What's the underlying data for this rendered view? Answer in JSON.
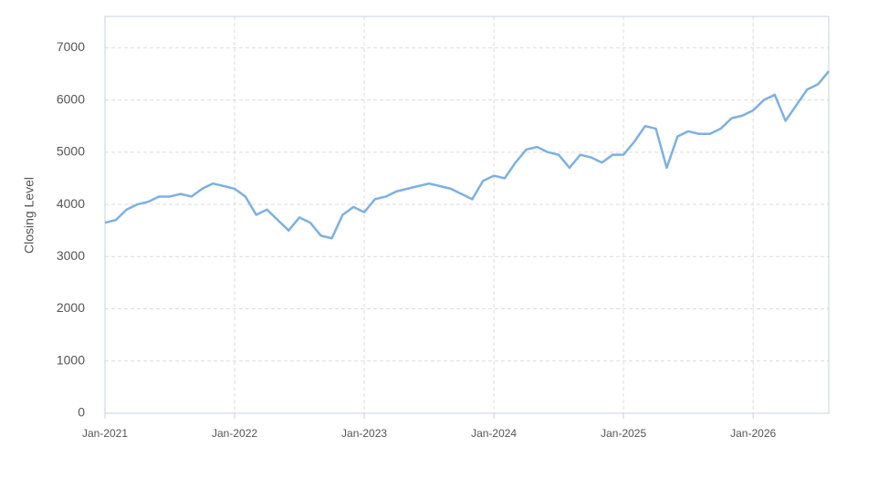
{
  "chart_data": {
    "type": "line",
    "y_label": "Closing Level",
    "x": [
      "2021-01",
      "2021-02",
      "2021-03",
      "2021-04",
      "2021-05",
      "2021-06",
      "2021-07",
      "2021-08",
      "2021-09",
      "2021-10",
      "2021-11",
      "2021-12",
      "2022-01",
      "2022-02",
      "2022-03",
      "2022-04",
      "2022-05",
      "2022-06",
      "2022-07",
      "2022-08",
      "2022-09",
      "2022-10",
      "2022-11",
      "2022-12",
      "2023-01",
      "2023-02",
      "2023-03",
      "2023-04",
      "2023-05",
      "2023-06",
      "2023-07",
      "2023-08",
      "2023-09",
      "2023-10",
      "2023-11",
      "2023-12",
      "2024-01",
      "2024-02",
      "2024-03",
      "2024-04",
      "2024-05",
      "2024-06",
      "2024-07",
      "2024-08",
      "2024-09",
      "2024-10",
      "2024-11",
      "2024-12",
      "2025-01",
      "2025-02",
      "2025-03",
      "2025-04",
      "2025-05",
      "2025-06",
      "2025-07",
      "2025-08",
      "2025-09",
      "2025-10",
      "2025-11",
      "2025-12",
      "2026-01",
      "2026-02",
      "2026-03",
      "2026-04",
      "2026-05",
      "2026-06",
      "2026-07",
      "2026-08"
    ],
    "series": [
      {
        "name": "Closing Level",
        "color": "#7cb0e4",
        "values": [
          3650,
          3700,
          3900,
          4000,
          4050,
          4150,
          4150,
          4200,
          4150,
          4300,
          4400,
          4350,
          4300,
          4150,
          3800,
          3900,
          3700,
          3500,
          3750,
          3650,
          3400,
          3350,
          3800,
          3950,
          3850,
          4100,
          4150,
          4250,
          4300,
          4350,
          4400,
          4350,
          4300,
          4200,
          4100,
          4450,
          4550,
          4500,
          4800,
          5050,
          5100,
          5000,
          4950,
          4700,
          4950,
          4900,
          4800,
          4950,
          4950,
          5200,
          5500,
          5450,
          4700,
          5300,
          5400,
          5350,
          5350,
          5450,
          5650,
          5700,
          5800,
          6000,
          6100,
          5600,
          5900,
          6200,
          6300,
          6550
        ]
      }
    ],
    "xlim": [
      "2021-01",
      "2026-08"
    ],
    "xticks": [
      {
        "value": "2021-01",
        "label": "Jan-2021"
      },
      {
        "value": "2022-01",
        "label": "Jan-2022"
      },
      {
        "value": "2023-01",
        "label": "Jan-2023"
      },
      {
        "value": "2024-01",
        "label": "Jan-2024"
      },
      {
        "value": "2025-01",
        "label": "Jan-2025"
      },
      {
        "value": "2026-01",
        "label": "Jan-2026"
      }
    ],
    "ylim": [
      0,
      7600
    ],
    "yticks": [
      0,
      1000,
      2000,
      3000,
      4000,
      5000,
      6000,
      7000
    ],
    "grid": true
  }
}
